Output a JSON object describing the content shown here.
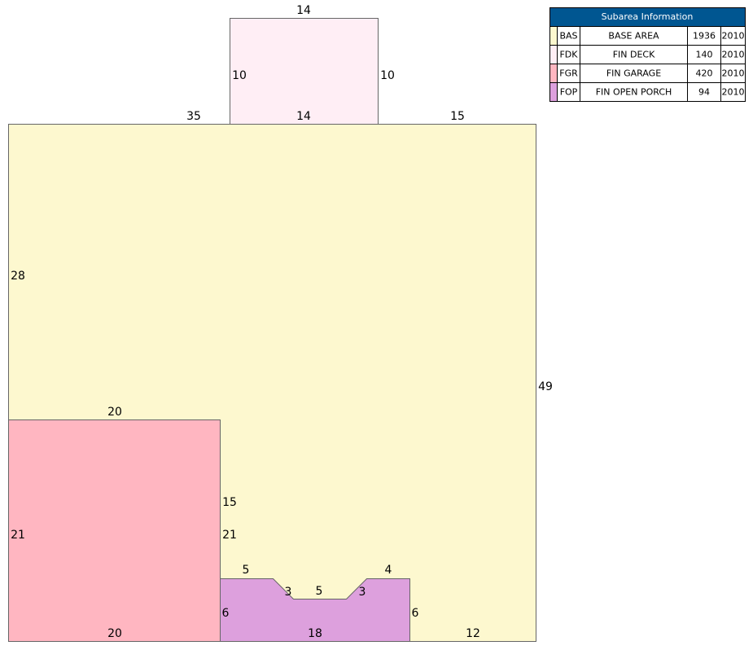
{
  "table": {
    "title": "Subarea Information",
    "rows": [
      [
        "BAS",
        "BASE AREA",
        1936,
        2010
      ],
      [
        "FDK",
        "FIN DECK",
        140,
        2010
      ],
      [
        "FGR",
        "FIN GARAGE",
        420,
        2010
      ],
      [
        "FOP",
        "FIN OPEN PORCH",
        94,
        2010
      ]
    ]
  },
  "labels": [
    14,
    10,
    10,
    35,
    14,
    15,
    28,
    49,
    20,
    15,
    21,
    21,
    5,
    4,
    3,
    5,
    3,
    6,
    6,
    20,
    18,
    12
  ]
}
